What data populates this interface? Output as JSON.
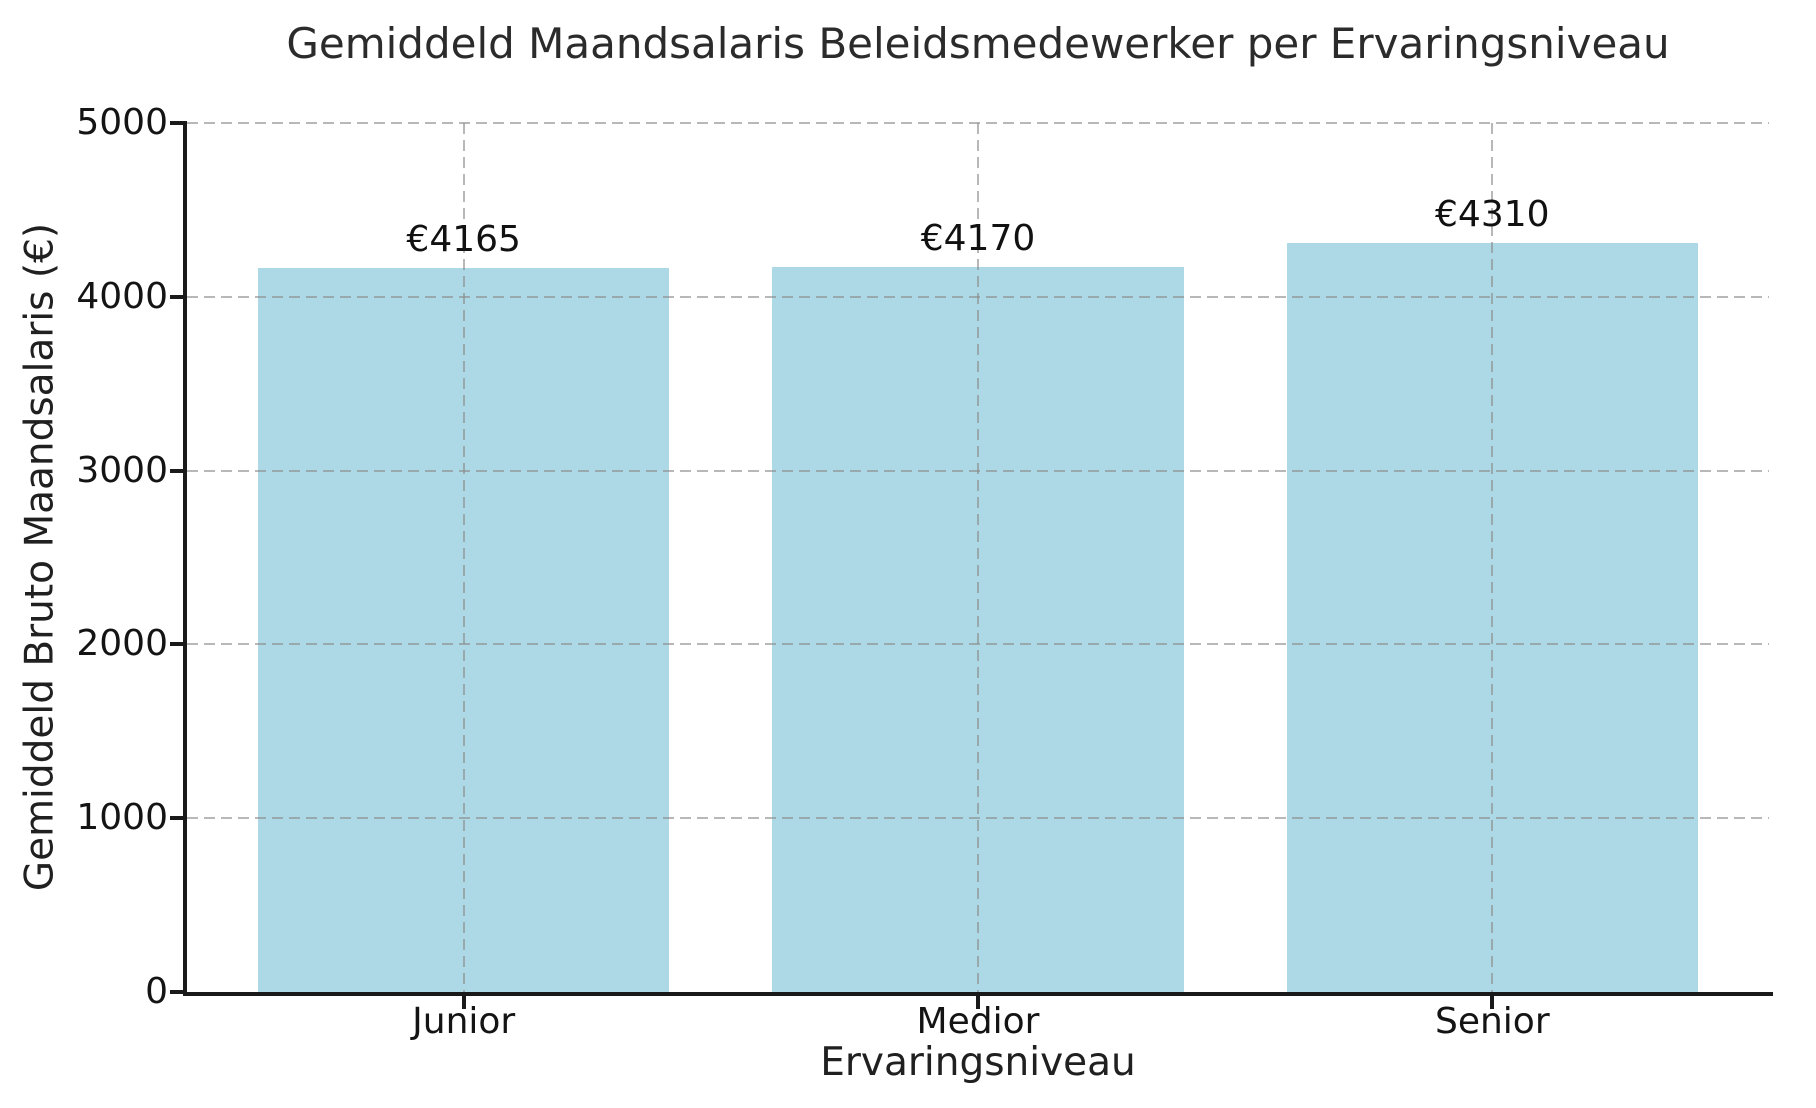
{
  "title": "Gemiddeld Maandsalaris Beleidsmedewerker per Ervaringsniveau",
  "colors": {
    "bar_fill": "#ADD8E6",
    "spine": "#1a1a1a",
    "grid": "#8c8c8c",
    "text": "#1a1a1a",
    "background": "#ffffff"
  },
  "chart_data": {
    "type": "bar",
    "title": "Gemiddeld Maandsalaris Beleidsmedewerker per Ervaringsniveau",
    "categories": [
      "Junior",
      "Medior",
      "Senior"
    ],
    "values": [
      4165,
      4170,
      4310
    ],
    "bar_labels": [
      "€4165",
      "€4170",
      "€4310"
    ],
    "xlabel": "Ervaringsniveau",
    "ylabel": "Gemiddeld Bruto Maandsalaris (€)",
    "ylim": [
      0,
      5000
    ],
    "yticks": [
      0,
      1000,
      2000,
      3000,
      4000,
      5000
    ],
    "bar_color": "#ADD8E6",
    "grid": "dashed gridlines on both axes, drawn over bars",
    "legend": "none"
  }
}
